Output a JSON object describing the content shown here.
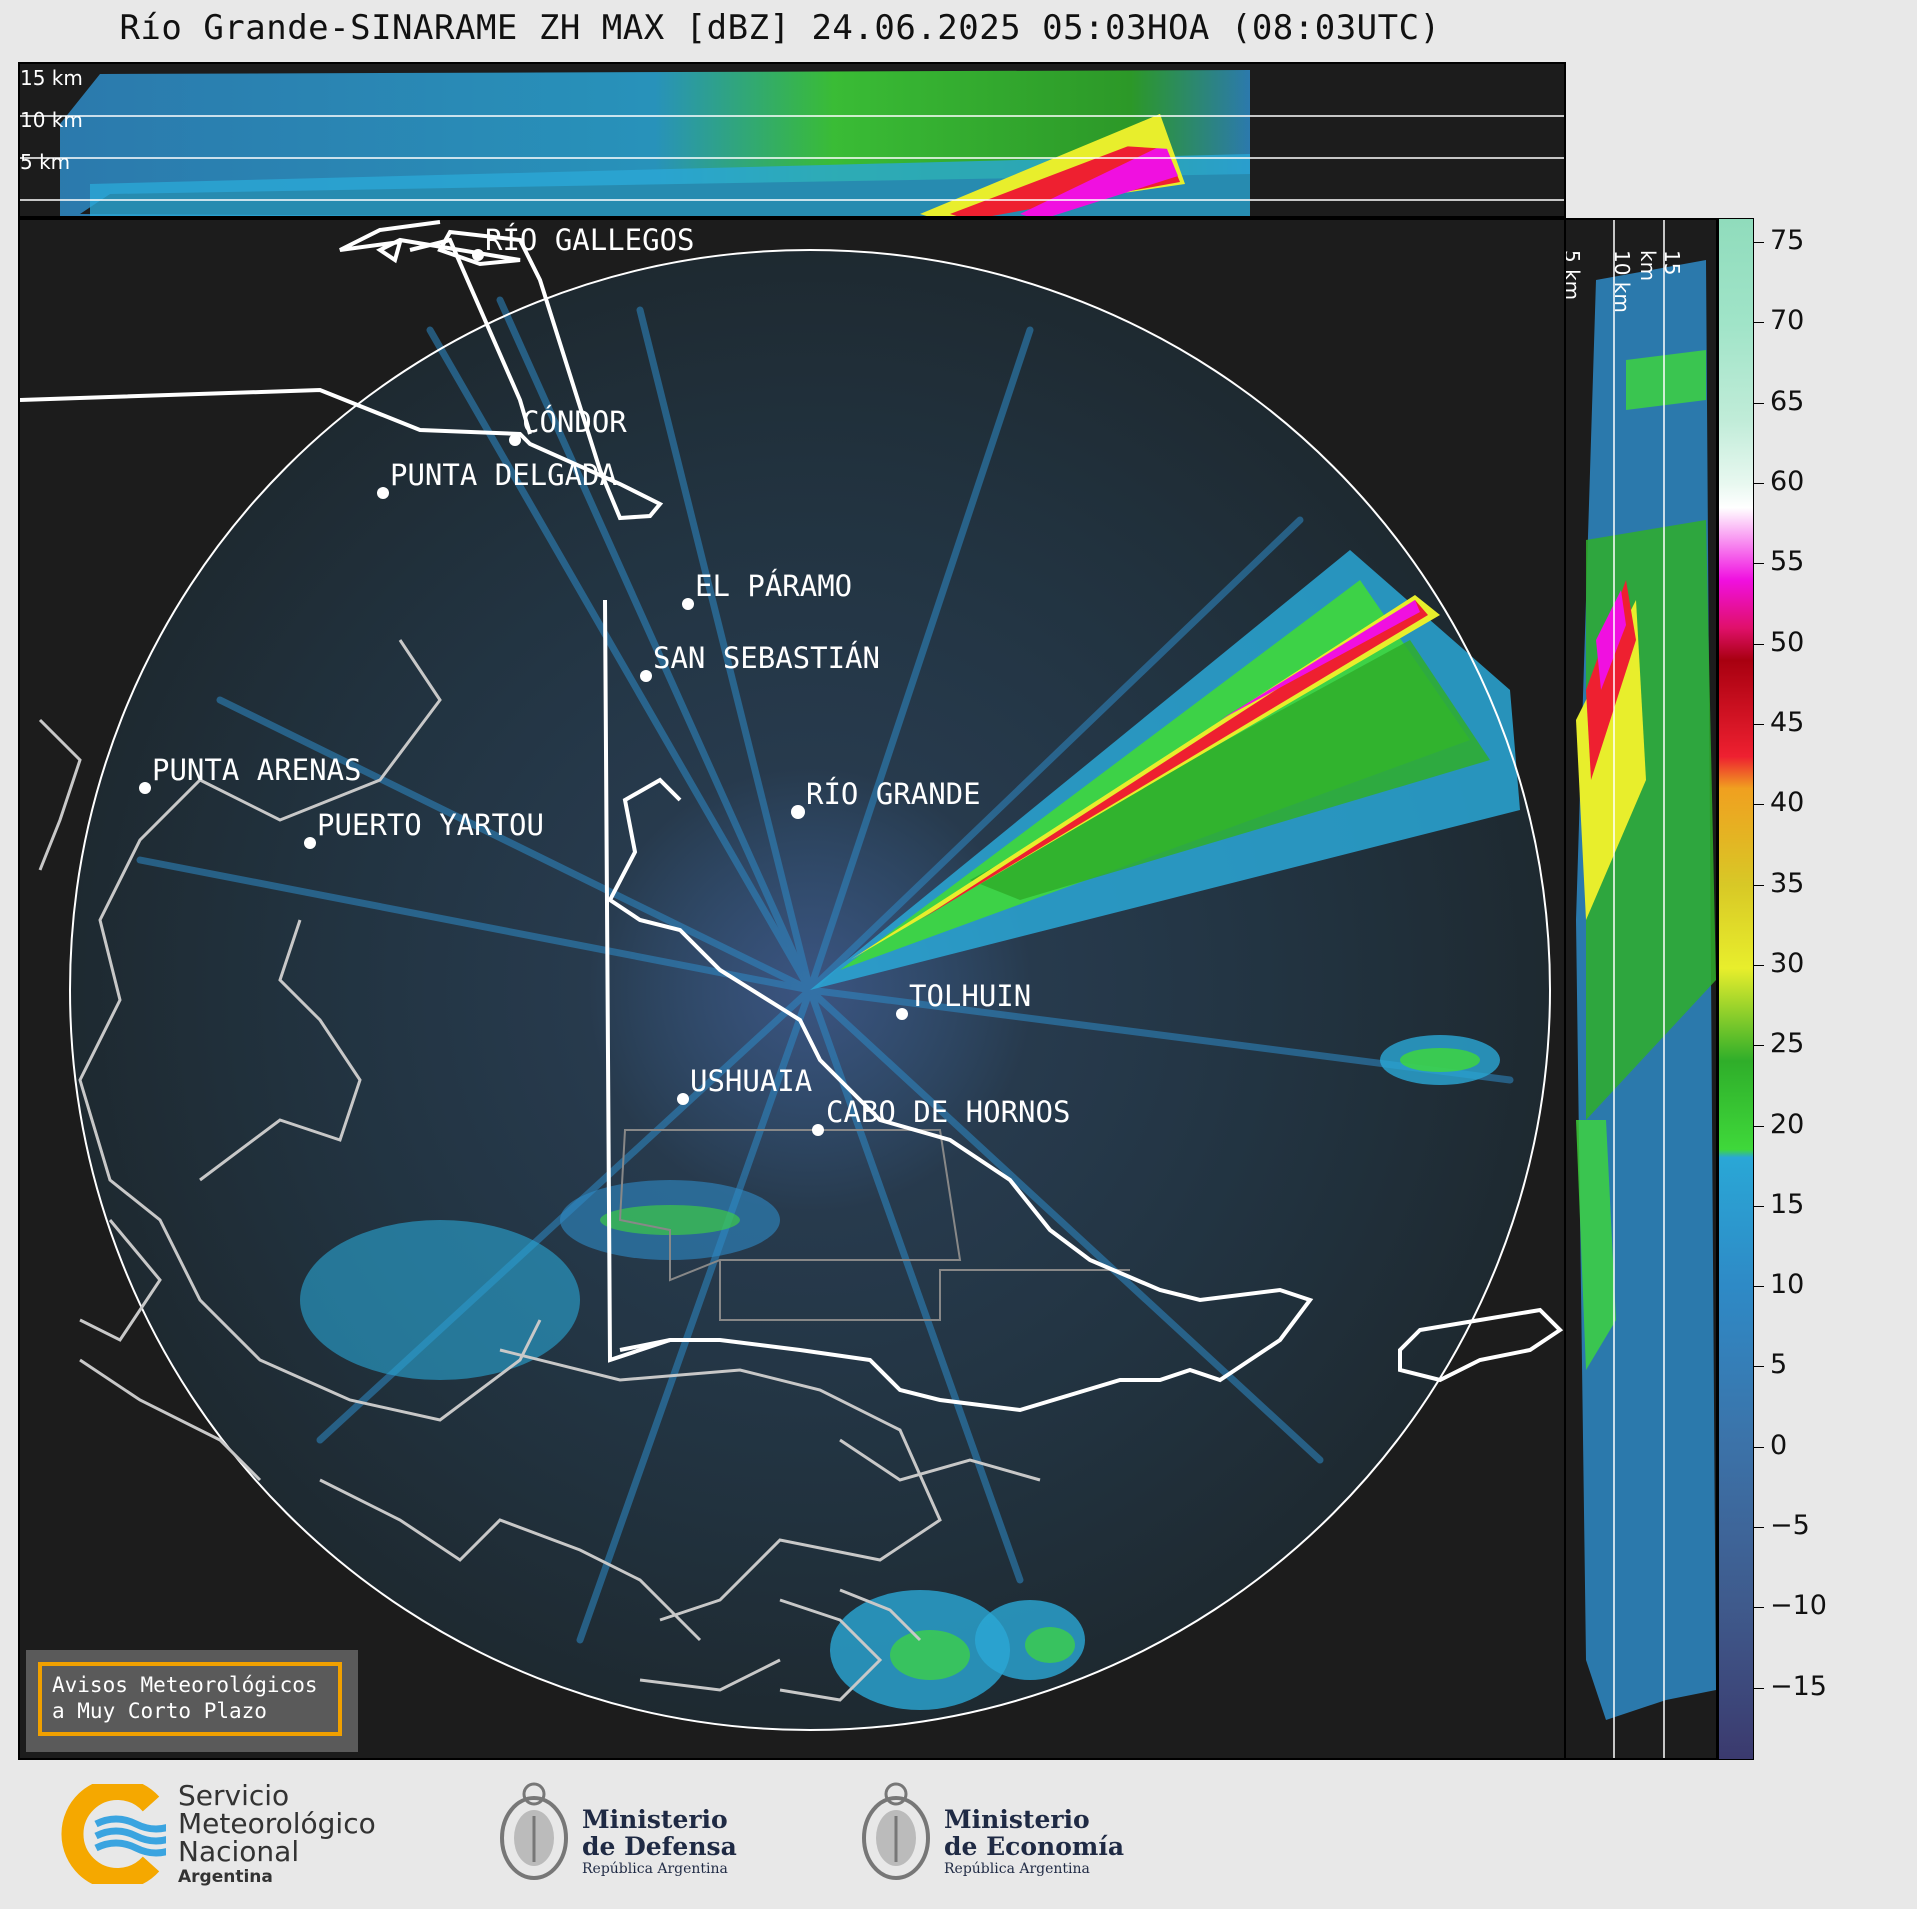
{
  "title": "Río Grande-SINARAME ZH MAX [dBZ] 24.06.2025 05:03HOA (08:03UTC)",
  "top_panel": {
    "height_labels": [
      "15 km",
      "10 km",
      "5 km"
    ]
  },
  "right_panel": {
    "height_labels": [
      "5 km",
      "10 km",
      "15 km"
    ]
  },
  "cities": [
    {
      "name": "RÍO GALLEGOS"
    },
    {
      "name": "CÓNDOR"
    },
    {
      "name": "PUNTA DELGADA"
    },
    {
      "name": "EL PÁRAMO"
    },
    {
      "name": "SAN SEBASTIÁN"
    },
    {
      "name": "PUNTA ARENAS"
    },
    {
      "name": "RÍO GRANDE"
    },
    {
      "name": "PUERTO YARTOU"
    },
    {
      "name": "TOLHUIN"
    },
    {
      "name": "USHUAIA"
    },
    {
      "name": "CABO DE HORNOS"
    }
  ],
  "colorbar": {
    "unit": "dBZ",
    "ticks": [
      "75",
      "70",
      "65",
      "60",
      "55",
      "50",
      "45",
      "40",
      "35",
      "30",
      "25",
      "20",
      "15",
      "10",
      "5",
      "0",
      "−5",
      "−10",
      "−15"
    ],
    "range": [
      -19.5,
      76.5
    ],
    "stops": [
      {
        "from": -19.5,
        "color": "#3b3a6e"
      },
      {
        "from": -10,
        "color": "#3f5a8c"
      },
      {
        "from": 0,
        "color": "#3c72a8"
      },
      {
        "from": 10,
        "color": "#2e8ac6"
      },
      {
        "from": 18,
        "color": "#2aa7d6"
      },
      {
        "from": 18.5,
        "color": "#3fd83a"
      },
      {
        "from": 24,
        "color": "#2fae2a"
      },
      {
        "from": 29.8,
        "color": "#e8ee2c"
      },
      {
        "from": 35,
        "color": "#d8c826"
      },
      {
        "from": 41,
        "color": "#f0a020"
      },
      {
        "from": 43,
        "color": "#ee2030"
      },
      {
        "from": 49,
        "color": "#a80010"
      },
      {
        "from": 51,
        "color": "#e0106a"
      },
      {
        "from": 54,
        "color": "#f010e0"
      },
      {
        "from": 58.5,
        "color": "#ffffff"
      },
      {
        "from": 60,
        "color": "#e8f8f0"
      },
      {
        "from": 64,
        "color": "#c0ecd8"
      },
      {
        "from": 70,
        "color": "#a0e4c8"
      },
      {
        "from": 76.5,
        "color": "#90dcbc"
      }
    ]
  },
  "aviso": {
    "line1": "Avisos Meteorológicos",
    "line2": "a Muy Corto Plazo"
  },
  "logos": {
    "smn": {
      "line1": "Servicio",
      "line2": "Meteorológico",
      "line3": "Nacional",
      "line4": "Argentina"
    },
    "defensa": {
      "line1": "Ministerio",
      "line2": "de Defensa",
      "line3": "República Argentina"
    },
    "economia": {
      "line1": "Ministerio",
      "line2": "de Economía",
      "line3": "República Argentina"
    }
  }
}
